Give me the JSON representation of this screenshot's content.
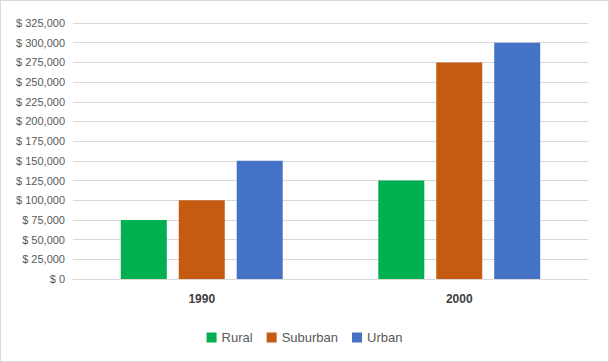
{
  "chart_data": {
    "type": "bar",
    "categories": [
      "1990",
      "2000"
    ],
    "series": [
      {
        "name": "Rural",
        "color": "#00b050",
        "values": [
          75000,
          125000
        ]
      },
      {
        "name": "Suburban",
        "color": "#c55a11",
        "values": [
          100000,
          275000
        ]
      },
      {
        "name": "Urban",
        "color": "#4472c4",
        "values": [
          150000,
          300000
        ]
      }
    ],
    "ylim": [
      0,
      325000
    ],
    "yticks": [
      {
        "value": 0,
        "label": "$ 0"
      },
      {
        "value": 25000,
        "label": "$ 25,000"
      },
      {
        "value": 50000,
        "label": "$ 50,000"
      },
      {
        "value": 75000,
        "label": "$ 75,000"
      },
      {
        "value": 100000,
        "label": "$ 100,000"
      },
      {
        "value": 125000,
        "label": "$ 125,000"
      },
      {
        "value": 150000,
        "label": "$ 150,000"
      },
      {
        "value": 175000,
        "label": "$ 175,000"
      },
      {
        "value": 200000,
        "label": "$ 200,000"
      },
      {
        "value": 225000,
        "label": "$ 225,000"
      },
      {
        "value": 250000,
        "label": "$ 250,000"
      },
      {
        "value": 275000,
        "label": "$ 275,000"
      },
      {
        "value": 300000,
        "label": "$ 300,000"
      },
      {
        "value": 325000,
        "label": "$ 325,000"
      }
    ],
    "grid": true,
    "legend": "bottom"
  }
}
